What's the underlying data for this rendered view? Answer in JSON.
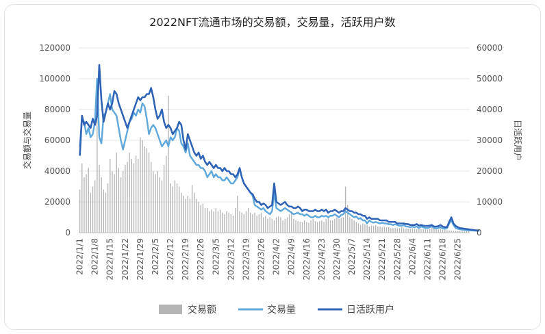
{
  "chart_data": {
    "type": "bar+line",
    "title": "2022NFT流通市场的交易额，交易量，活跃用户数",
    "ylabel_left": "交易额与交易量",
    "ylabel_right": "日活跃用户",
    "ylim_left": [
      0,
      120000
    ],
    "ylim_right": [
      0,
      60000
    ],
    "yticks_left": [
      "0",
      "20000",
      "40000",
      "60000",
      "80000",
      "100000",
      "120000"
    ],
    "yticks_right": [
      "0",
      "10000",
      "20000",
      "30000",
      "40000",
      "50000",
      "60000"
    ],
    "x_start": "2022/1/1",
    "x_labels": [
      "2022/1/1",
      "2022/1/8",
      "2022/1/15",
      "2022/1/22",
      "2022/1/29",
      "2022/2/5",
      "2022/2/12",
      "2022/2/19",
      "2022/2/26",
      "2022/3/5",
      "2022/3/12",
      "2022/3/19",
      "2022/3/26",
      "2022/4/2",
      "2022/4/9",
      "2022/4/16",
      "2022/4/23",
      "2022/4/30",
      "2022/5/7",
      "2022/5/14",
      "2022/5/21",
      "2022/5/28",
      "2022/6/4",
      "2022/6/11",
      "2022/6/18",
      "2022/6/25"
    ],
    "legend": [
      {
        "name": "交易额",
        "color": "#b5b5b5"
      },
      {
        "name": "交易量",
        "color": "#5ea8dc"
      },
      {
        "name": "日活跃用户",
        "color": "#2e63b5"
      }
    ],
    "series": [
      {
        "name": "交易额",
        "axis": "left",
        "kind": "bar",
        "values": [
          28000,
          45000,
          36000,
          38000,
          42000,
          26000,
          30000,
          34000,
          80000,
          44000,
          36000,
          28000,
          26000,
          32000,
          48000,
          40000,
          38000,
          52000,
          42000,
          36000,
          40000,
          44000,
          46000,
          52000,
          48000,
          45000,
          50000,
          48000,
          62000,
          60000,
          56000,
          55000,
          52000,
          46000,
          40000,
          38000,
          40000,
          36000,
          34000,
          44000,
          50000,
          89000,
          32000,
          30000,
          34000,
          32000,
          30000,
          26000,
          24000,
          22000,
          24000,
          22000,
          31000,
          26000,
          22000,
          20000,
          18000,
          19000,
          16000,
          16000,
          14000,
          15000,
          14000,
          16000,
          14000,
          15000,
          13000,
          12000,
          14000,
          13000,
          12000,
          11000,
          16000,
          24000,
          14000,
          13000,
          12000,
          14000,
          16000,
          13000,
          12000,
          13000,
          11000,
          12000,
          13000,
          10000,
          11000,
          9000,
          10000,
          9000,
          8000,
          10000,
          10500,
          10000,
          8000,
          9000,
          10000,
          12000,
          14000,
          9000,
          8000,
          7500,
          7000,
          7000,
          8000,
          7000,
          6500,
          8000,
          9000,
          7500,
          7000,
          7500,
          8000,
          7000,
          9000,
          9500,
          8000,
          8000,
          9000,
          10000,
          9000,
          9500,
          10000,
          30000,
          18000,
          10000,
          9000,
          8000,
          7000,
          6000,
          5000,
          6000,
          5500,
          5000,
          4000,
          4500,
          4500,
          5000,
          4000,
          4000,
          3500,
          4000,
          3500,
          3500,
          3000,
          3000,
          3000,
          3000,
          3000,
          3500,
          2800,
          2500,
          2600,
          2500,
          3000,
          2500,
          2400,
          2300,
          2400,
          2200,
          2200,
          2000,
          2200,
          3000,
          2500,
          2400,
          2000,
          2500,
          2000,
          1800,
          1600,
          1500,
          1400,
          1300,
          1300,
          1200,
          1200,
          1200,
          1000,
          1000,
          900
        ]
      },
      {
        "name": "交易量",
        "axis": "left",
        "kind": "line",
        "values": [
          56000,
          74000,
          72000,
          64000,
          68000,
          62000,
          64000,
          72000,
          100000,
          62000,
          58000,
          76000,
          78000,
          84000,
          90000,
          80000,
          78000,
          76000,
          68000,
          60000,
          54000,
          60000,
          66000,
          72000,
          74000,
          78000,
          76000,
          80000,
          78000,
          84000,
          82000,
          74000,
          64000,
          68000,
          70000,
          68000,
          64000,
          60000,
          56000,
          58000,
          60000,
          56000,
          62000,
          60000,
          62000,
          68000,
          66000,
          58000,
          56000,
          52000,
          58000,
          50000,
          48000,
          46000,
          44000,
          44000,
          42000,
          42000,
          40000,
          36000,
          38000,
          40000,
          36000,
          38000,
          36000,
          36000,
          34000,
          34000,
          36000,
          34000,
          32000,
          32000,
          34000,
          36000,
          42000,
          36000,
          32000,
          30000,
          28000,
          26000,
          24000,
          18000,
          17000,
          16000,
          15000,
          16000,
          14000,
          13000,
          12000,
          14000,
          26000,
          16000,
          15000,
          14000,
          15000,
          16000,
          15000,
          14000,
          13000,
          12000,
          12500,
          13000,
          12000,
          12000,
          11000,
          12000,
          11000,
          10000,
          10000,
          11000,
          10000,
          10000,
          11000,
          10500,
          11000,
          10000,
          11000,
          11000,
          12000,
          11000,
          10000,
          11500,
          12000,
          14000,
          13000,
          12000,
          11000,
          10000,
          10500,
          9000,
          9500,
          8000,
          8000,
          6000,
          8000,
          7000,
          6500,
          7000,
          6500,
          6000,
          6500,
          6000,
          6000,
          5500,
          5500,
          5000,
          5500,
          5000,
          4500,
          4500,
          5000,
          4000,
          4000,
          3500,
          4000,
          3500,
          4000,
          3000,
          4000,
          3500,
          3000,
          3000,
          3500,
          4000,
          3000,
          2800,
          3000,
          3500,
          2800,
          2500,
          3000,
          6000,
          8000,
          5000,
          3000,
          2500,
          2200,
          2000,
          1800,
          1600,
          1500,
          1500,
          1400,
          1300,
          1200,
          1100
        ]
      },
      {
        "name": "日活跃用户",
        "axis": "right",
        "kind": "line",
        "values": [
          25000,
          38000,
          35000,
          36000,
          35000,
          34000,
          37000,
          35000,
          38000,
          54500,
          43000,
          36000,
          39000,
          42000,
          40000,
          42000,
          46000,
          45000,
          42000,
          40000,
          38000,
          36000,
          34000,
          36000,
          38000,
          40000,
          42000,
          44000,
          43000,
          44000,
          44000,
          45000,
          45000,
          47000,
          44000,
          40000,
          37000,
          38000,
          40000,
          36000,
          34000,
          35000,
          34000,
          32000,
          33000,
          34000,
          36000,
          35000,
          30000,
          27000,
          32000,
          30000,
          28000,
          26000,
          25000,
          26000,
          24000,
          25000,
          23000,
          22000,
          23000,
          22000,
          21000,
          22000,
          21000,
          21000,
          20000,
          21000,
          20000,
          20000,
          19000,
          19000,
          18000,
          19000,
          21000,
          18000,
          16000,
          15000,
          14000,
          13000,
          12500,
          11000,
          10000,
          10000,
          9000,
          9500,
          9000,
          8000,
          8500,
          9000,
          16000,
          10000,
          9500,
          9000,
          9500,
          10000,
          9000,
          8500,
          8500,
          8000,
          8000,
          8500,
          8000,
          7000,
          7500,
          7500,
          7000,
          7000,
          7000,
          7500,
          7000,
          7000,
          7500,
          7000,
          7500,
          6500,
          7000,
          7000,
          7500,
          7000,
          6500,
          7000,
          7000,
          8000,
          7500,
          7000,
          7000,
          6500,
          6500,
          6000,
          6000,
          5500,
          5500,
          4500,
          5000,
          4500,
          4500,
          4500,
          4500,
          4000,
          4000,
          4000,
          4000,
          3500,
          3500,
          3500,
          3500,
          3000,
          3000,
          3000,
          3000,
          2800,
          2800,
          2500,
          2500,
          2500,
          2800,
          2300,
          2500,
          2300,
          2200,
          2200,
          2300,
          2500,
          2000,
          2000,
          2100,
          2500,
          2000,
          1800,
          1800,
          3500,
          5000,
          3000,
          2200,
          1800,
          1500,
          1400,
          1300,
          1200,
          1100,
          1000,
          900,
          800,
          750,
          700
        ]
      }
    ],
    "grid": true,
    "legend_position": "bottom"
  }
}
